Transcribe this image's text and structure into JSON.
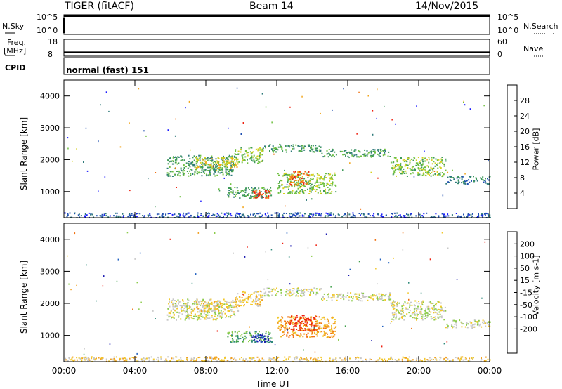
{
  "header": {
    "radar": "TIGER (fitACF)",
    "beam": "Beam 14",
    "date": "14/Nov/2015"
  },
  "params": {
    "nsky": {
      "label": "N.Sky",
      "max_tick": "10^5",
      "min_tick": "10^0"
    },
    "nsearch": {
      "label": "N.Search",
      "max_tick": "10^5",
      "min_tick": "10^0"
    },
    "freq": {
      "label": "Freq.",
      "unit": "[MHz]",
      "max_tick": "18",
      "min_tick": "8",
      "value": 10
    },
    "nave": {
      "label": "Nave",
      "max_tick": "60",
      "min_tick": "0",
      "value": 5
    },
    "cpid": {
      "label": "CPID",
      "value": "normal (fast) 151"
    }
  },
  "axis": {
    "xlabel": "Time UT",
    "xticks": [
      "00:00",
      "04:00",
      "08:00",
      "12:00",
      "16:00",
      "20:00",
      "00:00"
    ],
    "xlim": [
      0,
      24
    ]
  },
  "chart_data": [
    {
      "type": "heatmap",
      "name": "power",
      "ylabel": "Slant Range [km]",
      "ylim": [
        180,
        4500
      ],
      "yticks": [
        1000,
        2000,
        3000,
        4000
      ],
      "colorbar": {
        "label": "Power [dB]",
        "range": [
          0,
          32
        ],
        "ticks": [
          4,
          8,
          12,
          16,
          20,
          24,
          28
        ],
        "colors": [
          "#1a1aff",
          "#1e4fb0",
          "#2f7a7a",
          "#3f9a5a",
          "#6fc040",
          "#d6d21e",
          "#f2a51a",
          "#f07010",
          "#ee2010"
        ]
      },
      "bands": [
        {
          "t0": 5.8,
          "t1": 9.6,
          "r0": 1500,
          "r1": 2150,
          "level": 3
        },
        {
          "t0": 7.4,
          "t1": 9.8,
          "r0": 1750,
          "r1": 2100,
          "level": 5
        },
        {
          "t0": 9.6,
          "t1": 11.2,
          "r0": 1900,
          "r1": 2400,
          "level": 4
        },
        {
          "t0": 11.2,
          "t1": 14.5,
          "r0": 2250,
          "r1": 2500,
          "level": 3
        },
        {
          "t0": 14.5,
          "t1": 18.4,
          "r0": 2100,
          "r1": 2350,
          "level": 3
        },
        {
          "t0": 18.4,
          "t1": 21.5,
          "r0": 1500,
          "r1": 2100,
          "level": 4
        },
        {
          "t0": 21.5,
          "t1": 24.0,
          "r0": 1250,
          "r1": 1500,
          "level": 2
        },
        {
          "t0": 9.2,
          "t1": 11.7,
          "r0": 800,
          "r1": 1150,
          "level": 3
        },
        {
          "t0": 10.6,
          "t1": 11.6,
          "r0": 800,
          "r1": 1050,
          "level": 8
        },
        {
          "t0": 12.0,
          "t1": 15.3,
          "r0": 950,
          "r1": 1600,
          "level": 4
        },
        {
          "t0": 12.7,
          "t1": 13.8,
          "r0": 1200,
          "r1": 1650,
          "level": 7
        },
        {
          "t0": 0.0,
          "t1": 24.0,
          "r0": 200,
          "r1": 350,
          "level": 1
        }
      ]
    },
    {
      "type": "heatmap",
      "name": "velocity",
      "ylabel": "Slant Range [km]",
      "ylim": [
        180,
        4500
      ],
      "yticks": [
        1000,
        2000,
        3000,
        4000
      ],
      "colorbar": {
        "label": "Velocity [m s-1]",
        "ticks": [
          200,
          100,
          50,
          15,
          -15,
          -50,
          -100,
          -200
        ],
        "colors": [
          "#1a1ab0",
          "#2060c0",
          "#2f8a7a",
          "#3fa04a",
          "#8ccc4a",
          "#c8c8c8",
          "#f2c82a",
          "#f2a020",
          "#f07010",
          "#ee2010"
        ]
      },
      "bands": [
        {
          "t0": 5.8,
          "t1": 9.6,
          "r0": 1500,
          "r1": 2150,
          "level": 5
        },
        {
          "t0": 7.4,
          "t1": 9.8,
          "r0": 1750,
          "r1": 2100,
          "level": 6
        },
        {
          "t0": 9.6,
          "t1": 11.2,
          "r0": 1900,
          "r1": 2400,
          "level": 6
        },
        {
          "t0": 11.2,
          "t1": 14.5,
          "r0": 2250,
          "r1": 2500,
          "level": 5
        },
        {
          "t0": 14.5,
          "t1": 18.4,
          "r0": 2100,
          "r1": 2350,
          "level": 5
        },
        {
          "t0": 18.4,
          "t1": 21.5,
          "r0": 1500,
          "r1": 2100,
          "level": 5
        },
        {
          "t0": 21.5,
          "t1": 24.0,
          "r0": 1250,
          "r1": 1500,
          "level": 5
        },
        {
          "t0": 9.2,
          "t1": 11.7,
          "r0": 800,
          "r1": 1150,
          "level": 3
        },
        {
          "t0": 10.6,
          "t1": 11.6,
          "r0": 800,
          "r1": 1050,
          "level": 0
        },
        {
          "t0": 12.0,
          "t1": 15.3,
          "r0": 950,
          "r1": 1600,
          "level": 7
        },
        {
          "t0": 12.7,
          "t1": 14.2,
          "r0": 1150,
          "r1": 1650,
          "level": 9
        },
        {
          "t0": 0.0,
          "t1": 24.0,
          "r0": 200,
          "r1": 350,
          "level": 6
        }
      ]
    }
  ]
}
